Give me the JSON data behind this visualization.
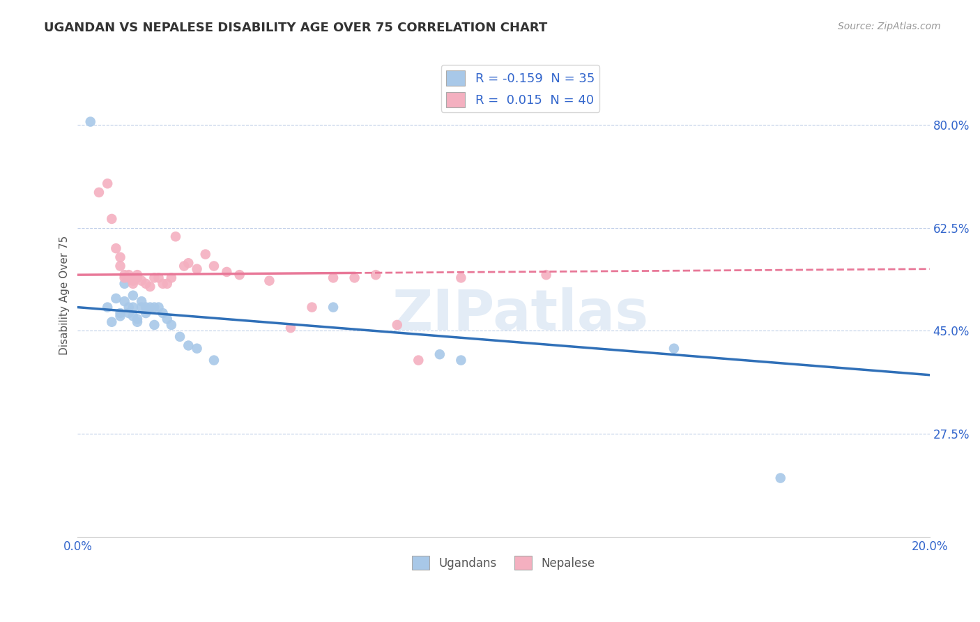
{
  "title": "UGANDAN VS NEPALESE DISABILITY AGE OVER 75 CORRELATION CHART",
  "source": "Source: ZipAtlas.com",
  "ylabel": "Disability Age Over 75",
  "ytick_labels": [
    "80.0%",
    "62.5%",
    "45.0%",
    "27.5%"
  ],
  "ytick_values": [
    0.8,
    0.625,
    0.45,
    0.275
  ],
  "xlim": [
    0.0,
    0.2
  ],
  "ylim": [
    0.1,
    0.92
  ],
  "legend_ugandan_r": "-0.159",
  "legend_ugandan_n": "35",
  "legend_nepalese_r": "0.015",
  "legend_nepalese_n": "40",
  "ugandan_color": "#a8c8e8",
  "nepalese_color": "#f4b0c0",
  "ugandan_line_color": "#3070b8",
  "nepalese_line_color": "#e87898",
  "background_color": "#ffffff",
  "watermark": "ZIPatlas",
  "ugandan_line_x0": 0.0,
  "ugandan_line_x1": 0.2,
  "ugandan_line_y0": 0.49,
  "ugandan_line_y1": 0.375,
  "nepalese_line_x0": 0.0,
  "nepalese_line_solid_end": 0.065,
  "nepalese_line_x1": 0.2,
  "nepalese_line_y0": 0.545,
  "nepalese_line_y1": 0.555,
  "ugandan_x": [
    0.003,
    0.007,
    0.008,
    0.009,
    0.01,
    0.01,
    0.011,
    0.011,
    0.012,
    0.012,
    0.013,
    0.013,
    0.013,
    0.014,
    0.014,
    0.015,
    0.015,
    0.016,
    0.016,
    0.017,
    0.018,
    0.018,
    0.019,
    0.02,
    0.021,
    0.022,
    0.024,
    0.026,
    0.028,
    0.032,
    0.06,
    0.085,
    0.09,
    0.14,
    0.165
  ],
  "ugandan_y": [
    0.805,
    0.49,
    0.465,
    0.505,
    0.48,
    0.475,
    0.53,
    0.5,
    0.49,
    0.48,
    0.51,
    0.49,
    0.475,
    0.465,
    0.47,
    0.5,
    0.49,
    0.49,
    0.48,
    0.49,
    0.46,
    0.49,
    0.49,
    0.48,
    0.47,
    0.46,
    0.44,
    0.425,
    0.42,
    0.4,
    0.49,
    0.41,
    0.4,
    0.42,
    0.2
  ],
  "nepalese_x": [
    0.005,
    0.007,
    0.008,
    0.009,
    0.01,
    0.01,
    0.011,
    0.011,
    0.012,
    0.012,
    0.013,
    0.013,
    0.014,
    0.014,
    0.015,
    0.016,
    0.017,
    0.018,
    0.019,
    0.02,
    0.021,
    0.022,
    0.023,
    0.025,
    0.026,
    0.028,
    0.03,
    0.032,
    0.035,
    0.038,
    0.045,
    0.05,
    0.055,
    0.06,
    0.065,
    0.07,
    0.075,
    0.08,
    0.09,
    0.11
  ],
  "nepalese_y": [
    0.685,
    0.7,
    0.64,
    0.59,
    0.56,
    0.575,
    0.54,
    0.545,
    0.545,
    0.54,
    0.53,
    0.535,
    0.545,
    0.54,
    0.535,
    0.53,
    0.525,
    0.54,
    0.54,
    0.53,
    0.53,
    0.54,
    0.61,
    0.56,
    0.565,
    0.555,
    0.58,
    0.56,
    0.55,
    0.545,
    0.535,
    0.455,
    0.49,
    0.54,
    0.54,
    0.545,
    0.46,
    0.4,
    0.54,
    0.545
  ]
}
